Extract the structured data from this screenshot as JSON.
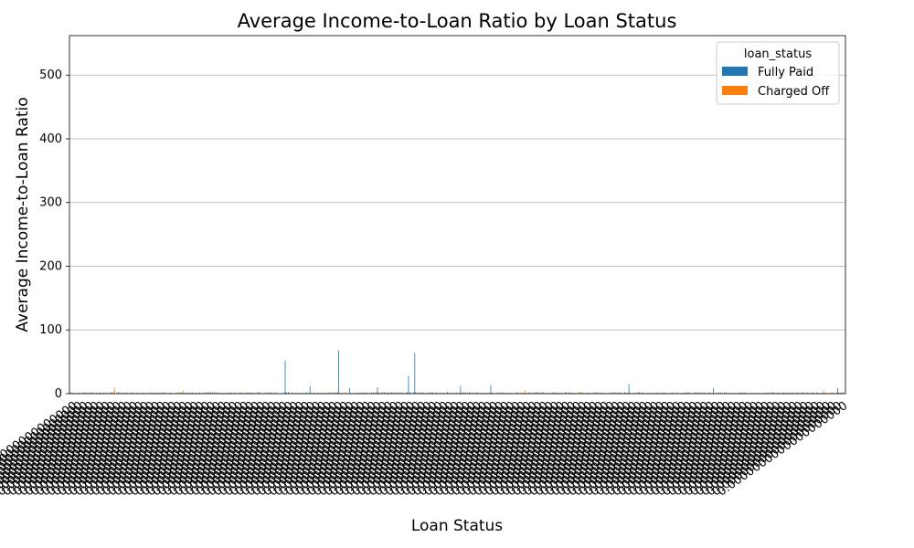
{
  "chart_data": {
    "type": "bar",
    "title": "Average Income-to-Loan Ratio by Loan Status",
    "xlabel": "Loan Status",
    "ylabel": "Average Income-to-Loan Ratio",
    "ylim": [
      0,
      562
    ],
    "yticks": [
      0,
      100,
      200,
      300,
      400,
      500
    ],
    "grid": "horizontal",
    "legend": {
      "title": "loan_status",
      "placement": "top-right",
      "entries": [
        {
          "name": "Fully Paid",
          "color": "#1f77b4"
        },
        {
          "name": "Charged Off",
          "color": "#ff7f0e"
        }
      ]
    },
    "x_tick_labels_note": "hundreds of overlapping rotated category labels, illegible",
    "series": [
      {
        "name": "Fully Paid",
        "color": "#1f77b4",
        "notable_values": [
          {
            "position": 0.278,
            "value": 52
          },
          {
            "position": 0.347,
            "value": 68
          },
          {
            "position": 0.445,
            "value": 64
          },
          {
            "position": 0.437,
            "value": 28
          },
          {
            "position": 0.721,
            "value": 15
          },
          {
            "position": 0.31,
            "value": 12
          },
          {
            "position": 0.543,
            "value": 13
          },
          {
            "position": 0.504,
            "value": 12
          },
          {
            "position": 0.397,
            "value": 10
          },
          {
            "position": 0.361,
            "value": 9
          },
          {
            "position": 0.83,
            "value": 9
          },
          {
            "position": 0.99,
            "value": 9
          }
        ]
      },
      {
        "name": "Charged Off",
        "color": "#ff7f0e",
        "notable_values": [
          {
            "position": 0.058,
            "value": 10
          },
          {
            "position": 0.147,
            "value": 5
          },
          {
            "position": 0.587,
            "value": 5
          },
          {
            "position": 0.972,
            "value": 5
          }
        ]
      }
    ],
    "baseline_category_count": 420
  }
}
